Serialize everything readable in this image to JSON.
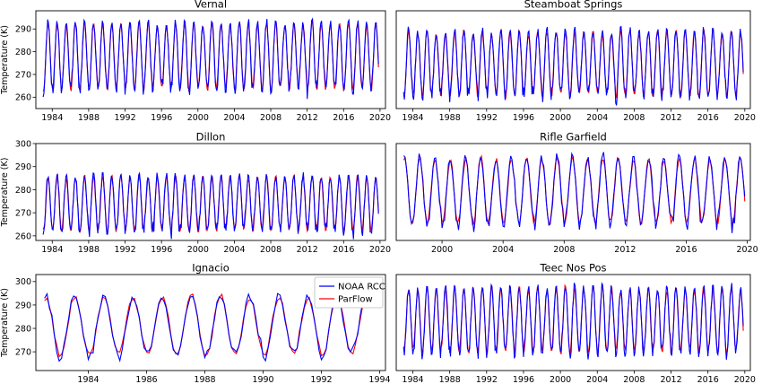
{
  "chart_data": [
    {
      "type": "line",
      "title": "Vernal",
      "ylabel": "Temperature (K)",
      "xlim": [
        1982.2,
        2020.6
      ],
      "ylim": [
        255,
        298
      ],
      "xticks": [
        1984,
        1988,
        1992,
        1996,
        2000,
        2004,
        2008,
        2012,
        2016,
        2020
      ],
      "yticks": [
        260,
        270,
        280,
        290
      ],
      "start": 1983.0,
      "end": 2019.8,
      "mean": 278,
      "amp": 15,
      "series": [
        {
          "name": "NOAA RCC",
          "color": "#0000ff"
        },
        {
          "name": "ParFlow",
          "color": "#ff0000"
        }
      ]
    },
    {
      "type": "line",
      "title": "Steamboat Springs",
      "ylabel": "",
      "xlim": [
        1982.2,
        2020.6
      ],
      "ylim": [
        258,
        297
      ],
      "xticks": [
        1984,
        1988,
        1992,
        1996,
        2000,
        2004,
        2008,
        2012,
        2016,
        2020
      ],
      "yticks": [],
      "start": 1983.0,
      "end": 2019.8,
      "mean": 276,
      "amp": 13,
      "series": [
        {
          "name": "NOAA RCC",
          "color": "#0000ff"
        },
        {
          "name": "ParFlow",
          "color": "#ff0000"
        }
      ]
    },
    {
      "type": "line",
      "title": "Dillon",
      "ylabel": "Temperature (K)",
      "xlim": [
        1982.2,
        2020.6
      ],
      "ylim": [
        258,
        300
      ],
      "xticks": [
        1984,
        1988,
        1992,
        1996,
        2000,
        2004,
        2008,
        2012,
        2016,
        2020
      ],
      "yticks": [
        260,
        270,
        280,
        290,
        300
      ],
      "start": 1983.0,
      "end": 2019.8,
      "mean": 274,
      "amp": 12,
      "series": [
        {
          "name": "NOAA RCC",
          "color": "#0000ff"
        },
        {
          "name": "ParFlow",
          "color": "#ff0000"
        }
      ]
    },
    {
      "type": "line",
      "title": "Rifle Garfield",
      "ylabel": "",
      "xlim": [
        1997.0,
        2020.2
      ],
      "ylim": [
        263,
        300
      ],
      "xticks": [
        2000,
        2004,
        2008,
        2012,
        2016,
        2020
      ],
      "yticks": [],
      "start": 1997.5,
      "end": 2019.8,
      "mean": 282,
      "amp": 13,
      "series": [
        {
          "name": "NOAA RCC",
          "color": "#0000ff"
        },
        {
          "name": "ParFlow",
          "color": "#ff0000"
        }
      ]
    },
    {
      "type": "line",
      "title": "Ignacio",
      "ylabel": "Temperature (K)",
      "xlim": [
        1982.2,
        1994.2
      ],
      "ylim": [
        262,
        303
      ],
      "xticks": [
        1984,
        1986,
        1988,
        1990,
        1992,
        1994
      ],
      "yticks": [
        270,
        280,
        290,
        300
      ],
      "start": 1982.5,
      "end": 1993.6,
      "mean": 281,
      "amp": 13,
      "legend": {
        "position": "top-right",
        "entries": [
          "NOAA RCC",
          "ParFlow"
        ]
      },
      "series": [
        {
          "name": "NOAA RCC",
          "color": "#0000ff"
        },
        {
          "name": "ParFlow",
          "color": "#ff0000"
        }
      ]
    },
    {
      "type": "line",
      "title": "Teec Nos Pos",
      "ylabel": "",
      "xlim": [
        1982.2,
        2020.6
      ],
      "ylim": [
        266,
        304
      ],
      "xticks": [
        1984,
        1988,
        1992,
        1996,
        2000,
        2004,
        2008,
        2012,
        2016,
        2020
      ],
      "yticks": [],
      "start": 1983.0,
      "end": 2019.8,
      "mean": 286,
      "amp": 13,
      "series": [
        {
          "name": "NOAA RCC",
          "color": "#0000ff"
        },
        {
          "name": "ParFlow",
          "color": "#ff0000"
        }
      ]
    }
  ]
}
